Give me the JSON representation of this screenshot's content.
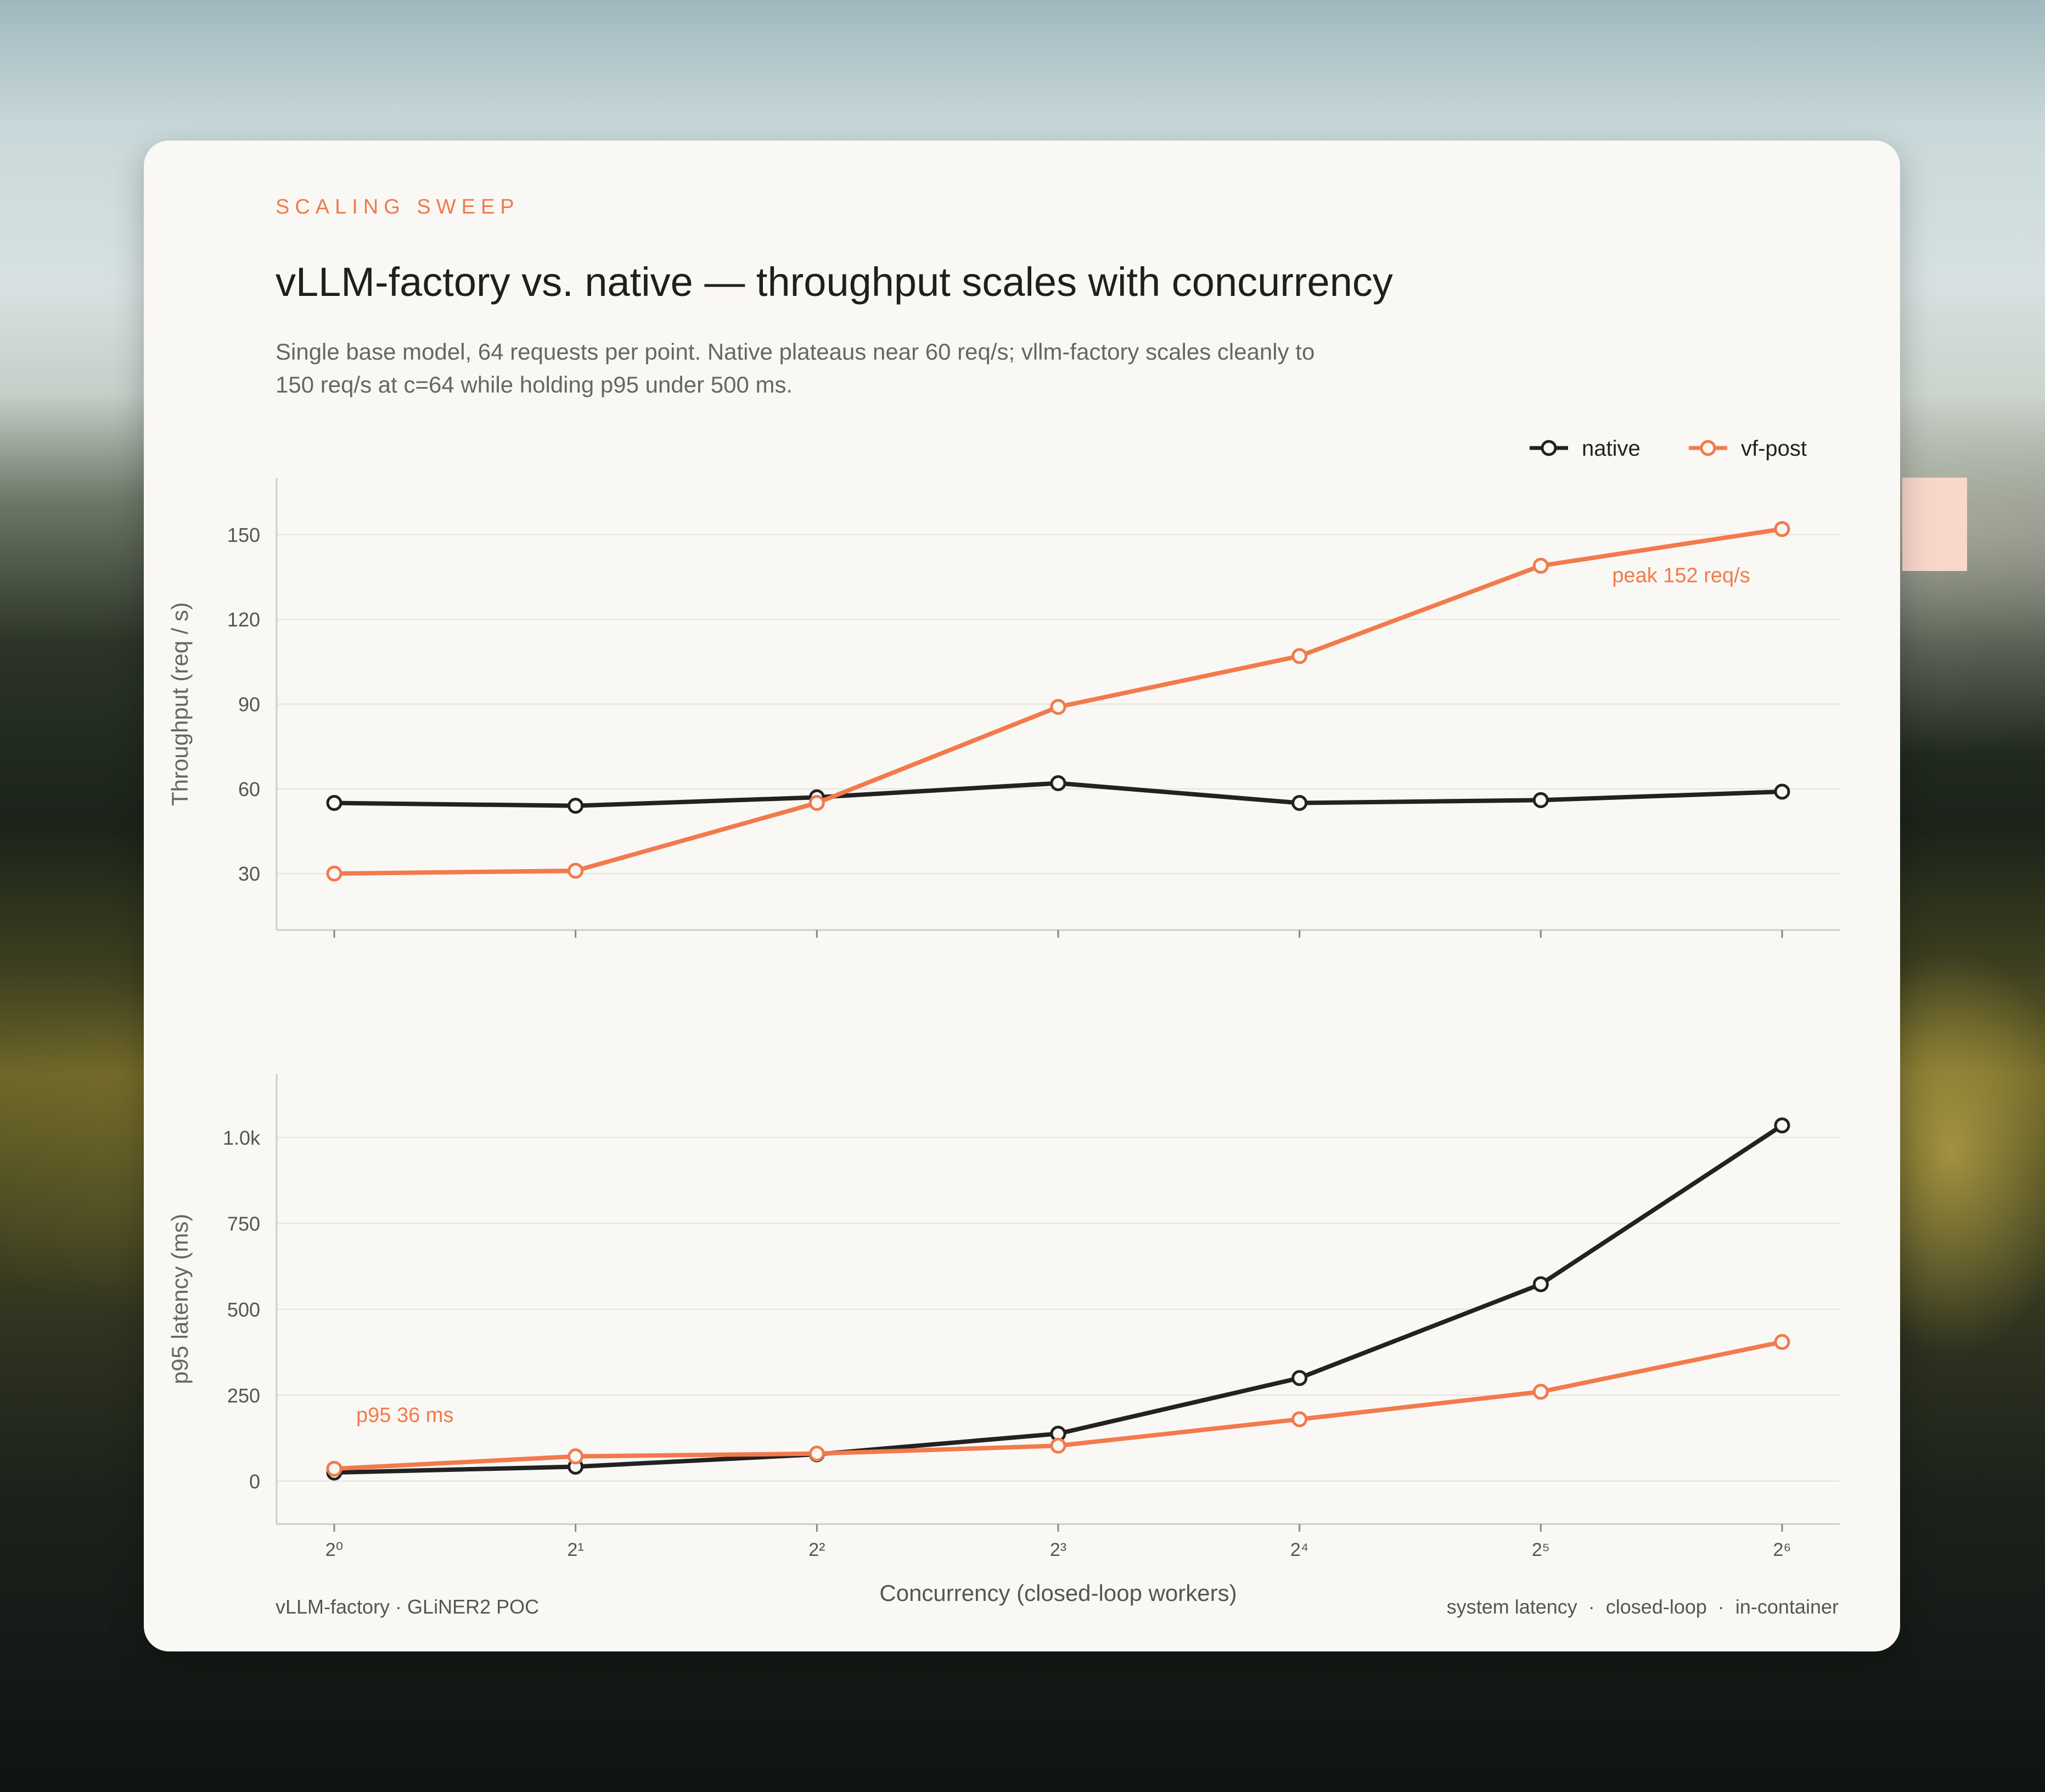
{
  "header": {
    "eyebrow": "SCALING SWEEP",
    "title": "vLLM-factory vs. native — throughput scales with concurrency",
    "subtitle": "Single base model, 64 requests per point. Native plateaus near 60 req/s; vllm-factory scales cleanly to 150 req/s at c=64 while holding p95 under 500 ms."
  },
  "legend": [
    {
      "label": "native",
      "color": "#222222"
    },
    {
      "label": "vf-post",
      "color": "#f27a4c"
    }
  ],
  "colors": {
    "native": "#222222",
    "vf_post": "#f27a4c",
    "grid": "#e4e2dc",
    "axis": "#cfcdc7",
    "text": "#555555"
  },
  "footer": {
    "left": "vLLM-factory · GLiNER2 POC",
    "right": "system latency  ·  closed-loop  ·  in-container"
  },
  "chart_data": [
    {
      "type": "line",
      "ylabel": "Throughput  (req / s)",
      "xlabel": "",
      "x": [
        1,
        2,
        4,
        8,
        16,
        32,
        64
      ],
      "x_tick_labels": [
        "2⁰",
        "2¹",
        "2²",
        "2³",
        "2⁴",
        "2⁵",
        "2⁶"
      ],
      "x_scale": "log2",
      "ylim": [
        10,
        170
      ],
      "yticks": [
        30,
        60,
        90,
        120,
        150
      ],
      "ytick_labels": [
        "30",
        "60",
        "90",
        "120",
        "150"
      ],
      "grid": true,
      "legend": "top-right",
      "series": [
        {
          "name": "native",
          "values": [
            55,
            54,
            57,
            62,
            55,
            56,
            59
          ]
        },
        {
          "name": "vf-post",
          "values": [
            30,
            31,
            55,
            89,
            107,
            139,
            152
          ]
        }
      ],
      "annotations": [
        {
          "text": "peak 152 req/s",
          "near_series": "vf-post"
        }
      ]
    },
    {
      "type": "line",
      "ylabel": "p95 latency  (ms)",
      "xlabel": "Concurrency (closed-loop workers)",
      "x": [
        1,
        2,
        4,
        8,
        16,
        32,
        64
      ],
      "x_tick_labels": [
        "2⁰",
        "2¹",
        "2²",
        "2³",
        "2⁴",
        "2⁵",
        "2⁶"
      ],
      "x_scale": "log2",
      "ylim": [
        -125,
        1185
      ],
      "yticks": [
        0,
        250,
        500,
        750,
        1000
      ],
      "ytick_labels": [
        "0",
        "250",
        "500",
        "750",
        "1.0k"
      ],
      "grid": true,
      "series": [
        {
          "name": "native",
          "values": [
            25,
            42,
            78,
            138,
            300,
            573,
            1035
          ]
        },
        {
          "name": "vf-post",
          "values": [
            36,
            72,
            80,
            103,
            180,
            260,
            405
          ]
        }
      ],
      "annotations": [
        {
          "text": "p95 36 ms",
          "near_series": "vf-post"
        }
      ]
    }
  ]
}
